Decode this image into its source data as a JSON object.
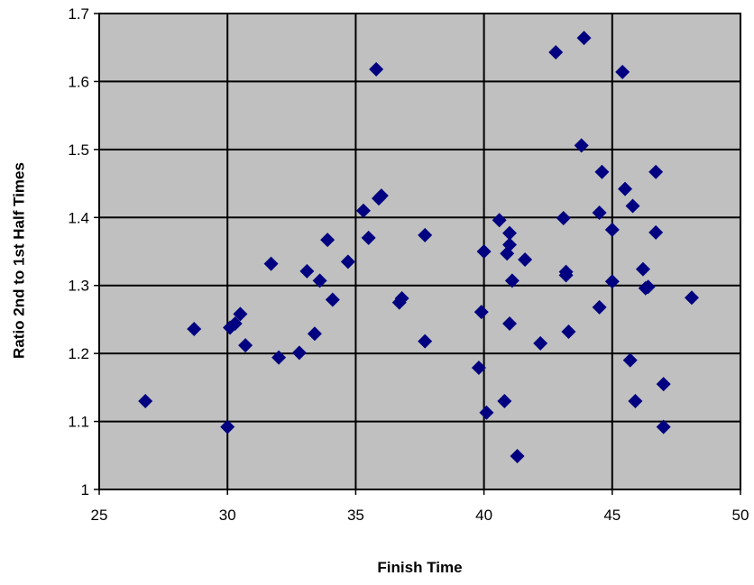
{
  "chart_data": {
    "type": "scatter",
    "title": "",
    "xlabel": "Finish Time",
    "ylabel": "Ratio 2nd to 1st Half Times",
    "xlim": [
      25,
      50
    ],
    "ylim": [
      1,
      1.7
    ],
    "x_ticks": [
      25,
      30,
      35,
      40,
      45,
      50
    ],
    "y_ticks": [
      1,
      1.1,
      1.2,
      1.3,
      1.4,
      1.5,
      1.6,
      1.7
    ],
    "x_tick_labels": [
      "25",
      "30",
      "35",
      "40",
      "45",
      "50"
    ],
    "y_tick_labels": [
      "1",
      "1.1",
      "1.2",
      "1.3",
      "1.4",
      "1.5",
      "1.6",
      "1.7"
    ],
    "grid": true,
    "legend": "none",
    "plot_background": "#c0c0c0",
    "marker_color": "#000080",
    "marker_shape": "diamond",
    "points": [
      [
        26.8,
        1.13
      ],
      [
        28.7,
        1.236
      ],
      [
        30.0,
        1.092
      ],
      [
        30.1,
        1.238
      ],
      [
        30.3,
        1.244
      ],
      [
        30.5,
        1.258
      ],
      [
        30.7,
        1.212
      ],
      [
        31.7,
        1.332
      ],
      [
        32.0,
        1.194
      ],
      [
        32.8,
        1.201
      ],
      [
        33.1,
        1.321
      ],
      [
        33.4,
        1.229
      ],
      [
        33.6,
        1.307
      ],
      [
        33.9,
        1.367
      ],
      [
        34.1,
        1.279
      ],
      [
        34.7,
        1.335
      ],
      [
        35.3,
        1.41
      ],
      [
        35.5,
        1.37
      ],
      [
        35.8,
        1.618
      ],
      [
        35.9,
        1.428
      ],
      [
        36.0,
        1.432
      ],
      [
        36.7,
        1.275
      ],
      [
        36.8,
        1.281
      ],
      [
        37.7,
        1.374
      ],
      [
        37.7,
        1.218
      ],
      [
        39.8,
        1.179
      ],
      [
        39.9,
        1.261
      ],
      [
        40.0,
        1.35
      ],
      [
        40.1,
        1.113
      ],
      [
        40.6,
        1.396
      ],
      [
        40.8,
        1.13
      ],
      [
        40.9,
        1.347
      ],
      [
        41.0,
        1.377
      ],
      [
        41.0,
        1.36
      ],
      [
        41.0,
        1.244
      ],
      [
        41.1,
        1.307
      ],
      [
        41.3,
        1.049
      ],
      [
        41.6,
        1.338
      ],
      [
        42.2,
        1.215
      ],
      [
        42.8,
        1.643
      ],
      [
        43.1,
        1.399
      ],
      [
        43.2,
        1.32
      ],
      [
        43.2,
        1.315
      ],
      [
        43.3,
        1.232
      ],
      [
        43.8,
        1.506
      ],
      [
        43.9,
        1.664
      ],
      [
        44.5,
        1.407
      ],
      [
        44.5,
        1.268
      ],
      [
        44.6,
        1.467
      ],
      [
        45.0,
        1.382
      ],
      [
        45.0,
        1.306
      ],
      [
        45.4,
        1.614
      ],
      [
        45.5,
        1.442
      ],
      [
        45.7,
        1.19
      ],
      [
        45.8,
        1.417
      ],
      [
        45.9,
        1.13
      ],
      [
        46.2,
        1.324
      ],
      [
        46.4,
        1.298
      ],
      [
        46.3,
        1.296
      ],
      [
        46.7,
        1.467
      ],
      [
        46.7,
        1.378
      ],
      [
        47.0,
        1.155
      ],
      [
        47.0,
        1.092
      ],
      [
        48.1,
        1.282
      ]
    ]
  }
}
